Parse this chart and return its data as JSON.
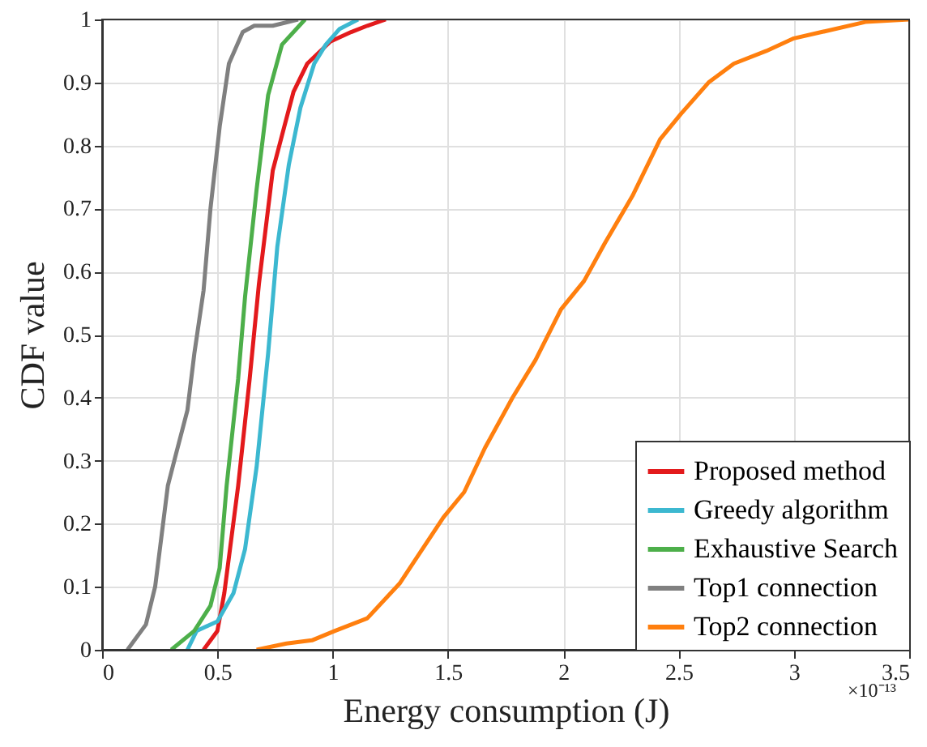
{
  "chart_data": {
    "type": "line",
    "xlabel": "Energy consumption (J)",
    "ylabel": "CDF value",
    "annotations": [
      "×10⁻¹³"
    ],
    "xlim": [
      0,
      3.5
    ],
    "xticks": [
      0,
      0.5,
      1,
      1.5,
      2,
      2.5,
      3,
      3.5
    ],
    "ylim": [
      0,
      1
    ],
    "yticks": [
      0,
      0.1,
      0.2,
      0.3,
      0.4,
      0.5,
      0.6,
      0.7,
      0.8,
      0.9,
      1
    ],
    "grid": true,
    "legend": "bottom right",
    "marker": "none",
    "line_style": "solid",
    "series": [
      {
        "name": "Proposed method",
        "color": "#e31a1c",
        "x": [
          0.44,
          0.5,
          0.53,
          0.59,
          0.64,
          0.68,
          0.74,
          0.79,
          0.83,
          0.89,
          0.99,
          1.08,
          1.15,
          1.23
        ],
        "values": [
          0,
          0.03,
          0.09,
          0.26,
          0.43,
          0.58,
          0.76,
          0.83,
          0.885,
          0.93,
          0.965,
          0.98,
          0.99,
          1
        ]
      },
      {
        "name": "Greedy algorithm",
        "color": "#3cb8d0",
        "x": [
          0.37,
          0.41,
          0.5,
          0.57,
          0.62,
          0.67,
          0.72,
          0.76,
          0.81,
          0.86,
          0.92,
          0.97,
          1.03,
          1.11
        ],
        "values": [
          0,
          0.03,
          0.045,
          0.09,
          0.16,
          0.29,
          0.47,
          0.64,
          0.77,
          0.86,
          0.93,
          0.96,
          0.985,
          1
        ]
      },
      {
        "name": "Exhaustive Search",
        "color": "#4daf4a",
        "x": [
          0.3,
          0.4,
          0.47,
          0.51,
          0.54,
          0.59,
          0.62,
          0.67,
          0.72,
          0.78,
          0.88
        ],
        "values": [
          0,
          0.03,
          0.07,
          0.13,
          0.26,
          0.43,
          0.56,
          0.73,
          0.88,
          0.96,
          1
        ]
      },
      {
        "name": "Top1 connection",
        "color": "#808080",
        "x": [
          0.11,
          0.19,
          0.23,
          0.285,
          0.32,
          0.37,
          0.4,
          0.44,
          0.47,
          0.51,
          0.55,
          0.61,
          0.66,
          0.74,
          0.85
        ],
        "values": [
          0,
          0.04,
          0.1,
          0.26,
          0.31,
          0.38,
          0.47,
          0.57,
          0.7,
          0.83,
          0.93,
          0.98,
          0.99,
          0.99,
          1
        ]
      },
      {
        "name": "Top2 connection",
        "color": "#ff7f0e",
        "x": [
          0.67,
          0.8,
          0.91,
          1.01,
          1.15,
          1.29,
          1.48,
          1.57,
          1.66,
          1.78,
          1.88,
          1.99,
          2.09,
          2.18,
          2.3,
          2.42,
          2.51,
          2.63,
          2.74,
          2.88,
          3.0,
          3.12,
          3.31,
          3.5
        ],
        "values": [
          0,
          0.01,
          0.015,
          0.03,
          0.05,
          0.105,
          0.21,
          0.25,
          0.32,
          0.4,
          0.46,
          0.54,
          0.585,
          0.645,
          0.72,
          0.81,
          0.85,
          0.9,
          0.93,
          0.95,
          0.97,
          0.98,
          0.996,
          1
        ]
      }
    ]
  }
}
